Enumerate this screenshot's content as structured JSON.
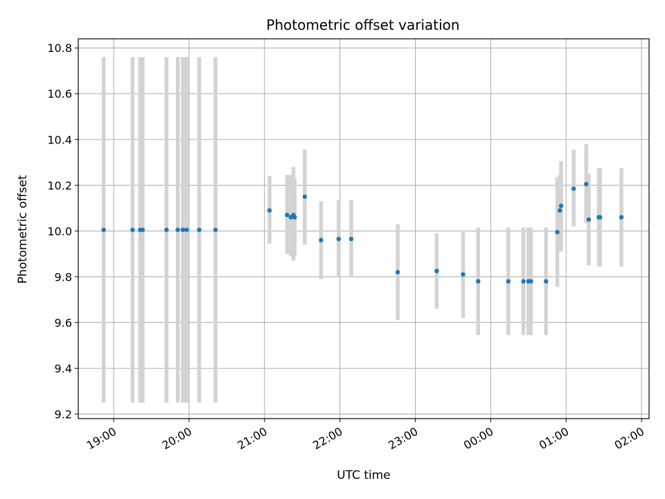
{
  "chart_data": {
    "type": "scatter",
    "title": "Photometric offset variation",
    "xlabel": "UTC time",
    "ylabel": "Photometric offset",
    "x_tick_labels": [
      "19:00",
      "20:00",
      "21:00",
      "22:00",
      "23:00",
      "00:00",
      "01:00",
      "02:00"
    ],
    "x_tick_hours": [
      19,
      20,
      21,
      22,
      23,
      24,
      25,
      26
    ],
    "y_ticks": [
      9.2,
      9.4,
      9.6,
      9.8,
      10.0,
      10.2,
      10.4,
      10.6,
      10.8
    ],
    "y_tick_labels": [
      "9.2",
      "9.4",
      "9.6",
      "9.8",
      "10.0",
      "10.2",
      "10.4",
      "10.6",
      "10.8"
    ],
    "xlim_hours": [
      18.53,
      26.1
    ],
    "ylim": [
      9.18,
      10.84
    ],
    "grid": true,
    "marker_color": "#1f77b4",
    "errorbar_color": "#d3d3d3",
    "points": [
      {
        "time": "18:52",
        "y": 10.005,
        "lo": 9.25,
        "hi": 10.76
      },
      {
        "time": "19:15",
        "y": 10.005,
        "lo": 9.25,
        "hi": 10.76
      },
      {
        "time": "19:21",
        "y": 10.005,
        "lo": 9.25,
        "hi": 10.76
      },
      {
        "time": "19:23",
        "y": 10.005,
        "lo": 9.25,
        "hi": 10.76
      },
      {
        "time": "19:42",
        "y": 10.005,
        "lo": 9.25,
        "hi": 10.76
      },
      {
        "time": "19:51",
        "y": 10.005,
        "lo": 9.25,
        "hi": 10.76
      },
      {
        "time": "19:55",
        "y": 10.005,
        "lo": 9.25,
        "hi": 10.76
      },
      {
        "time": "19:58",
        "y": 10.005,
        "lo": 9.25,
        "hi": 10.76
      },
      {
        "time": "20:08",
        "y": 10.005,
        "lo": 9.25,
        "hi": 10.76
      },
      {
        "time": "20:21",
        "y": 10.005,
        "lo": 9.25,
        "hi": 10.76
      },
      {
        "time": "21:04",
        "y": 10.09,
        "lo": 9.945,
        "hi": 10.24
      },
      {
        "time": "21:18",
        "y": 10.07,
        "lo": 9.9,
        "hi": 10.245
      },
      {
        "time": "21:21",
        "y": 10.06,
        "lo": 9.89,
        "hi": 10.245
      },
      {
        "time": "21:23",
        "y": 10.07,
        "lo": 9.87,
        "hi": 10.28
      },
      {
        "time": "21:24",
        "y": 10.06,
        "lo": 9.89,
        "hi": 10.23
      },
      {
        "time": "21:32",
        "y": 10.15,
        "lo": 9.94,
        "hi": 10.355
      },
      {
        "time": "21:45",
        "y": 9.96,
        "lo": 9.79,
        "hi": 10.13
      },
      {
        "time": "21:59",
        "y": 9.965,
        "lo": 9.8,
        "hi": 10.135
      },
      {
        "time": "22:09",
        "y": 9.965,
        "lo": 9.8,
        "hi": 10.135
      },
      {
        "time": "22:46",
        "y": 9.82,
        "lo": 9.61,
        "hi": 10.03
      },
      {
        "time": "23:17",
        "y": 9.825,
        "lo": 9.66,
        "hi": 9.99
      },
      {
        "time": "23:38",
        "y": 9.81,
        "lo": 9.62,
        "hi": 9.995
      },
      {
        "time": "23:50",
        "y": 9.78,
        "lo": 9.545,
        "hi": 10.015
      },
      {
        "time": "00:14",
        "y": 9.78,
        "lo": 9.545,
        "hi": 10.015
      },
      {
        "time": "00:26",
        "y": 9.78,
        "lo": 9.545,
        "hi": 10.015
      },
      {
        "time": "00:30",
        "y": 9.78,
        "lo": 9.545,
        "hi": 10.015
      },
      {
        "time": "00:32",
        "y": 9.78,
        "lo": 9.545,
        "hi": 10.015
      },
      {
        "time": "00:44",
        "y": 9.78,
        "lo": 9.545,
        "hi": 10.015
      },
      {
        "time": "00:53",
        "y": 9.995,
        "lo": 9.755,
        "hi": 10.235
      },
      {
        "time": "00:55",
        "y": 10.09,
        "lo": 9.935,
        "hi": 10.245
      },
      {
        "time": "00:56",
        "y": 10.11,
        "lo": 9.91,
        "hi": 10.305
      },
      {
        "time": "01:06",
        "y": 10.185,
        "lo": 10.02,
        "hi": 10.355
      },
      {
        "time": "01:16",
        "y": 10.205,
        "lo": 10.035,
        "hi": 10.38
      },
      {
        "time": "01:18",
        "y": 10.05,
        "lo": 9.85,
        "hi": 10.25
      },
      {
        "time": "01:26",
        "y": 10.06,
        "lo": 9.845,
        "hi": 10.275
      },
      {
        "time": "01:27",
        "y": 10.06,
        "lo": 9.845,
        "hi": 10.275
      },
      {
        "time": "01:44",
        "y": 10.06,
        "lo": 9.845,
        "hi": 10.275
      }
    ]
  }
}
